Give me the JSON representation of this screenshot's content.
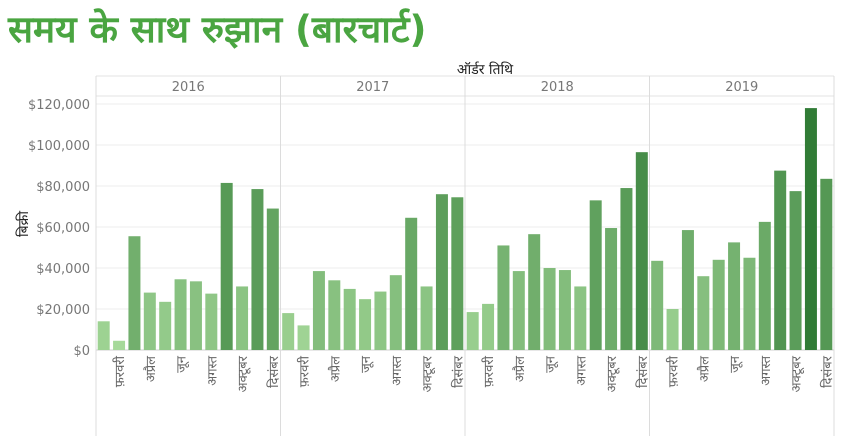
{
  "title": "समय के साथ रुझान (बारचार्ट)",
  "chart_data": {
    "type": "bar",
    "title": "समय के साथ रुझान (बारचार्ट)",
    "xlabel": "ऑर्डर तिथि",
    "ylabel": "बिक्री",
    "ylim": [
      0,
      120000
    ],
    "yticks": [
      "$0",
      "$20,000",
      "$40,000",
      "$60,000",
      "$80,000",
      "$100,000",
      "$120,000"
    ],
    "grid": true,
    "years": [
      "2016",
      "2017",
      "2018",
      "2019"
    ],
    "month_tick_labels": [
      "फ़रवरी",
      "अप्रैल",
      "जून",
      "अगस्त",
      "अक्टूबर",
      "दिसंबर"
    ],
    "values": [
      [
        14000,
        4500,
        55500,
        28000,
        23500,
        34500,
        33500,
        27500,
        81500,
        31000,
        78500,
        69000
      ],
      [
        18000,
        12000,
        38500,
        34000,
        29800,
        24800,
        28500,
        36500,
        64500,
        31000,
        76000,
        74500
      ],
      [
        18500,
        22500,
        51000,
        38500,
        56500,
        40000,
        39000,
        31000,
        73000,
        59500,
        79000,
        96500
      ],
      [
        43500,
        20000,
        58500,
        36000,
        44000,
        52500,
        45000,
        62500,
        87500,
        77500,
        118000,
        83500
      ]
    ],
    "color_low": "#a6d99a",
    "color_high": "#2f7a34"
  }
}
